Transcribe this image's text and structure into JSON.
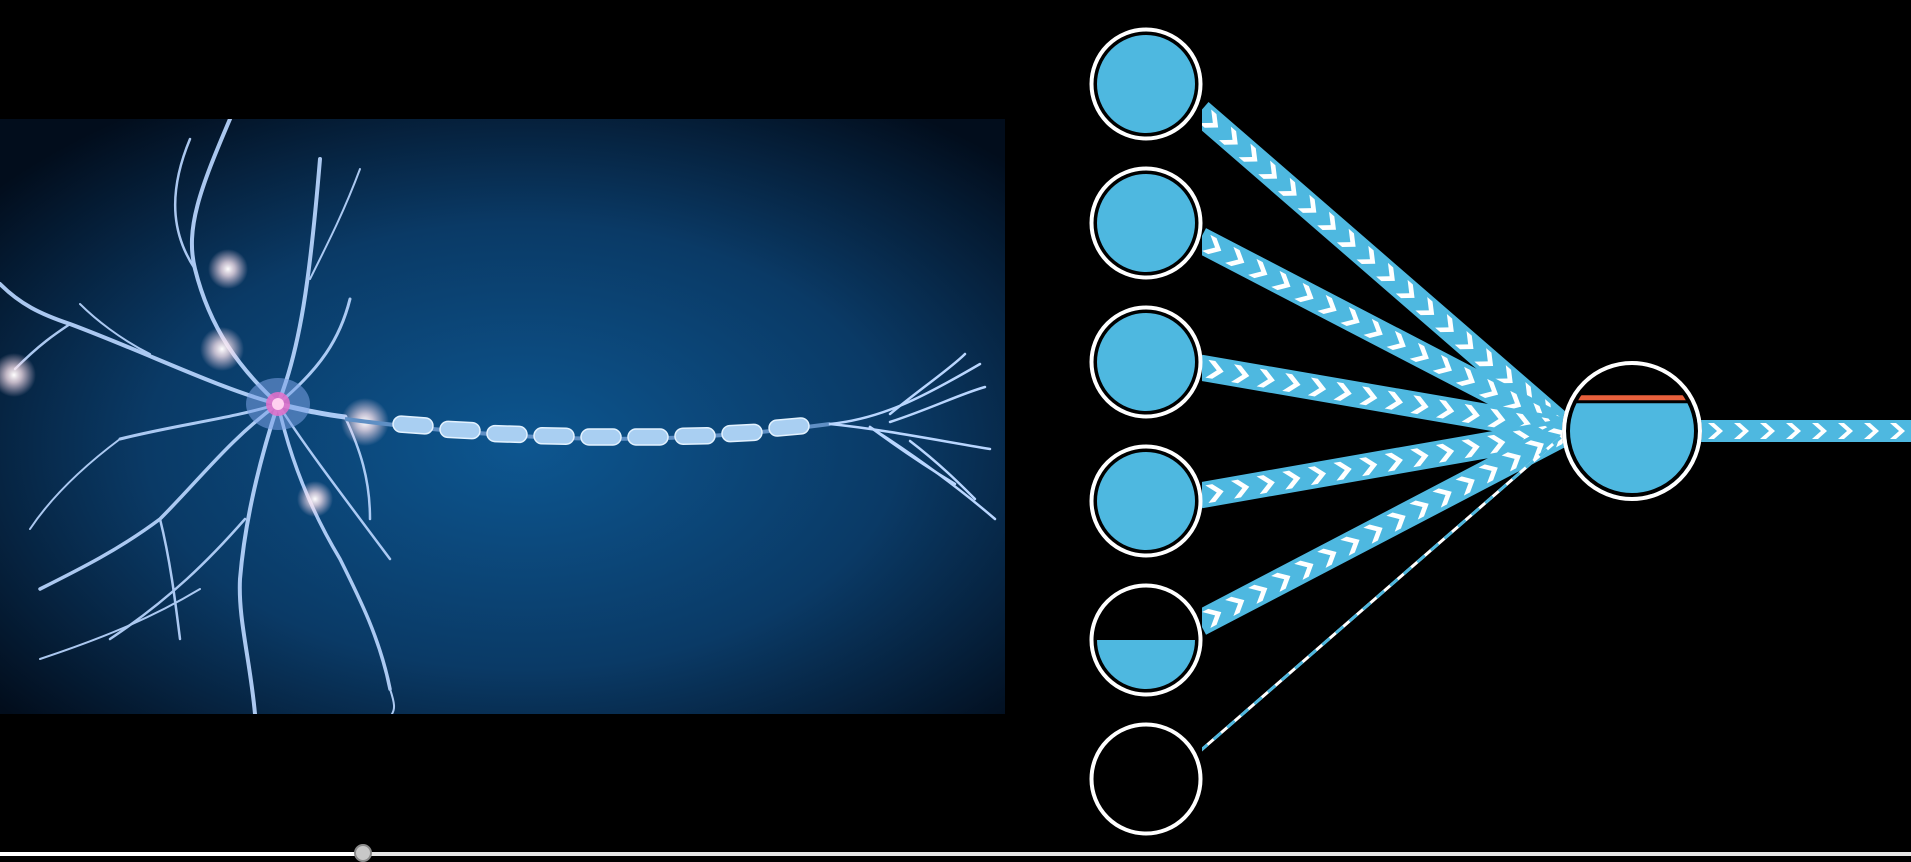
{
  "diagram": {
    "kind": "artificial-neuron",
    "input_nodes": [
      {
        "id": "input-1",
        "activation": 1.0,
        "signal": "strong"
      },
      {
        "id": "input-2",
        "activation": 1.0,
        "signal": "strong"
      },
      {
        "id": "input-3",
        "activation": 1.0,
        "signal": "strong"
      },
      {
        "id": "input-4",
        "activation": 1.0,
        "signal": "strong"
      },
      {
        "id": "input-5",
        "activation": 0.5,
        "signal": "strong"
      },
      {
        "id": "input-6",
        "activation": 0.0,
        "signal": "weak"
      }
    ],
    "output_node": {
      "activation": 0.72,
      "threshold": 0.76
    },
    "output_signal": "strong"
  },
  "player": {
    "progress": 0.19
  },
  "colors": {
    "background": "#000000",
    "node_fill": "#4eb8e0",
    "node_outline": "#ffffff",
    "threshold_line": "#e8603c",
    "chevron_fill": "#ffffff",
    "neuron_glow": "#cfe7ff",
    "illustration_background": "#0a4a7e"
  }
}
